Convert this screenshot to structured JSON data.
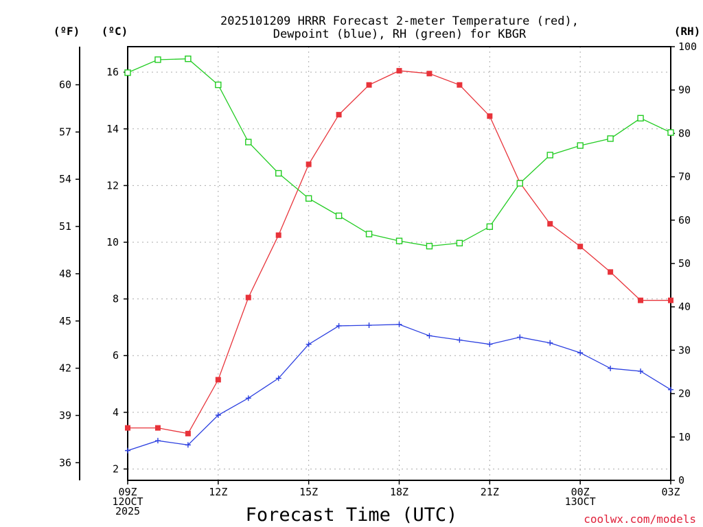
{
  "chart_data": {
    "type": "line",
    "title_lines": [
      "2025101209 HRRR Forecast 2-meter Temperature (red),",
      "Dewpoint (blue), RH (green) for KBGR"
    ],
    "xlabel": "Forecast Time (UTC)",
    "credit": "coolwx.com/models",
    "units": {
      "fahrenheit": "(ºF)",
      "celsius": "(ºC)",
      "rh": "(RH)"
    },
    "x_hours": [
      0,
      1,
      2,
      3,
      4,
      5,
      6,
      7,
      8,
      9,
      10,
      11,
      12,
      13,
      14,
      15,
      16,
      17,
      18
    ],
    "x_ticks": [
      {
        "hour": 0,
        "lines": [
          "09Z",
          "12OCT",
          "2025"
        ]
      },
      {
        "hour": 3,
        "lines": [
          "12Z"
        ]
      },
      {
        "hour": 6,
        "lines": [
          "15Z"
        ]
      },
      {
        "hour": 9,
        "lines": [
          "18Z"
        ]
      },
      {
        "hour": 12,
        "lines": [
          "21Z"
        ]
      },
      {
        "hour": 15,
        "lines": [
          "00Z",
          "13OCT"
        ]
      },
      {
        "hour": 18,
        "lines": [
          "03Z"
        ]
      }
    ],
    "celsius_axis": {
      "ylim": [
        1.6,
        16.9
      ],
      "ticks": [
        2,
        4,
        6,
        8,
        10,
        12,
        14,
        16
      ]
    },
    "fahrenheit_axis": {
      "ticks": [
        36,
        39,
        42,
        45,
        48,
        51,
        54,
        57,
        60
      ]
    },
    "rh_axis": {
      "ylim": [
        0,
        100
      ],
      "ticks": [
        0,
        10,
        20,
        30,
        40,
        50,
        60,
        70,
        80,
        90,
        100
      ]
    },
    "series": [
      {
        "name": "2-meter Temperature",
        "axis": "celsius",
        "color": "#e8333a",
        "marker": "filled-square",
        "values": [
          3.45,
          3.45,
          3.25,
          5.15,
          8.05,
          10.25,
          12.75,
          14.5,
          15.55,
          16.05,
          15.95,
          15.55,
          14.45,
          12.1,
          10.65,
          9.85,
          8.95,
          7.95,
          7.95
        ]
      },
      {
        "name": "Dewpoint",
        "axis": "celsius",
        "color": "#2b3fe0",
        "marker": "plus",
        "values": [
          2.65,
          3.0,
          2.85,
          3.9,
          4.5,
          5.2,
          6.4,
          7.05,
          7.07,
          7.1,
          6.7,
          6.55,
          6.4,
          6.65,
          6.45,
          6.1,
          5.55,
          5.45,
          4.8
        ]
      },
      {
        "name": "RH",
        "axis": "rh",
        "color": "#22cc22",
        "marker": "hollow-square",
        "values": [
          94,
          97,
          97.2,
          91.2,
          78,
          70.8,
          65,
          61,
          56.8,
          55.2,
          54,
          54.7,
          58.5,
          68.5,
          75,
          77.2,
          78.8,
          83.5,
          80.2
        ]
      }
    ]
  }
}
